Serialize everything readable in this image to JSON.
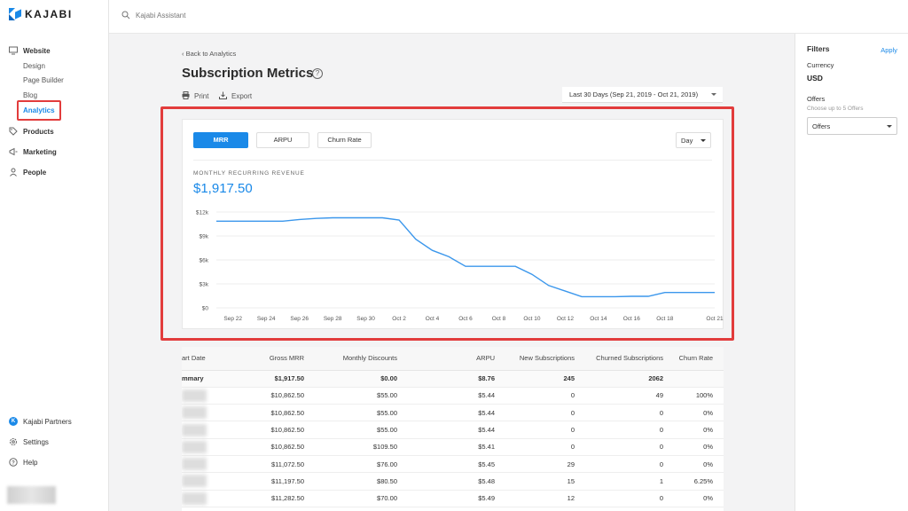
{
  "sidebar": {
    "logo_text": "KAJABI",
    "website": "Website",
    "website_sub": [
      "Design",
      "Page Builder",
      "Blog",
      "Analytics"
    ],
    "products": "Products",
    "marketing": "Marketing",
    "people": "People",
    "partners": "Kajabi Partners",
    "settings": "Settings",
    "help": "Help"
  },
  "topbar": {
    "search_placeholder": "Kajabi Assistant"
  },
  "main": {
    "back_link": "Back to Analytics",
    "title": "Subscription Metrics",
    "print": "Print",
    "export": "Export",
    "date_range": "Last 30 Days (Sep 21, 2019 - Oct 21, 2019)"
  },
  "card": {
    "tabs": [
      "MRR",
      "ARPU",
      "Churn Rate"
    ],
    "interval": "Day",
    "metric_label": "MONTHLY RECURRING REVENUE",
    "metric_value": "$1,917.50"
  },
  "chart_data": {
    "type": "line",
    "x_ticks": [
      "Sep 22",
      "Sep 24",
      "Sep 26",
      "Sep 28",
      "Sep 30",
      "Oct 2",
      "Oct 4",
      "Oct 6",
      "Oct 8",
      "Oct 10",
      "Oct 12",
      "Oct 14",
      "Oct 16",
      "Oct 18",
      "Oct 21"
    ],
    "y_ticks": [
      "$0",
      "$3k",
      "$6k",
      "$9k",
      "$12k"
    ],
    "ylim": [
      0,
      12000
    ],
    "x": [
      "Sep 21",
      "Sep 22",
      "Sep 23",
      "Sep 24",
      "Sep 25",
      "Sep 26",
      "Sep 27",
      "Sep 28",
      "Sep 29",
      "Sep 30",
      "Oct 1",
      "Oct 2",
      "Oct 3",
      "Oct 4",
      "Oct 5",
      "Oct 6",
      "Oct 7",
      "Oct 8",
      "Oct 9",
      "Oct 10",
      "Oct 11",
      "Oct 12",
      "Oct 13",
      "Oct 14",
      "Oct 15",
      "Oct 16",
      "Oct 17",
      "Oct 18",
      "Oct 19",
      "Oct 20",
      "Oct 21"
    ],
    "values": [
      10860,
      10860,
      10860,
      10860,
      10860,
      11070,
      11200,
      11280,
      11280,
      11280,
      11280,
      11000,
      8600,
      7200,
      6400,
      5200,
      5200,
      5200,
      5200,
      4200,
      2800,
      2100,
      1400,
      1400,
      1400,
      1450,
      1450,
      1917,
      1917,
      1917,
      1917
    ]
  },
  "table": {
    "headers": [
      "art Date",
      "Gross MRR",
      "Monthly Discounts",
      "ARPU",
      "New Subscriptions",
      "Churned Subscriptions",
      "Churn Rate"
    ],
    "summary": [
      "mmary",
      "$1,917.50",
      "$0.00",
      "$8.76",
      "245",
      "2062",
      ""
    ],
    "rows": [
      [
        "$10,862.50",
        "$55.00",
        "$5.44",
        "0",
        "49",
        "100%"
      ],
      [
        "$10,862.50",
        "$55.00",
        "$5.44",
        "0",
        "0",
        "0%"
      ],
      [
        "$10,862.50",
        "$55.00",
        "$5.44",
        "0",
        "0",
        "0%"
      ],
      [
        "$10,862.50",
        "$109.50",
        "$5.41",
        "0",
        "0",
        "0%"
      ],
      [
        "$11,072.50",
        "$76.00",
        "$5.45",
        "29",
        "0",
        "0%"
      ],
      [
        "$11,197.50",
        "$80.50",
        "$5.48",
        "15",
        "1",
        "6.25%"
      ],
      [
        "$11,282.50",
        "$70.00",
        "$5.49",
        "12",
        "0",
        "0%"
      ]
    ]
  },
  "filters": {
    "title": "Filters",
    "apply": "Apply",
    "currency_label": "Currency",
    "currency_value": "USD",
    "offers_label": "Offers",
    "offers_hint": "Choose up to 5 Offers",
    "offers_select": "Offers"
  },
  "colors": {
    "accent": "#1a89e8",
    "highlight": "#e23c3c"
  }
}
